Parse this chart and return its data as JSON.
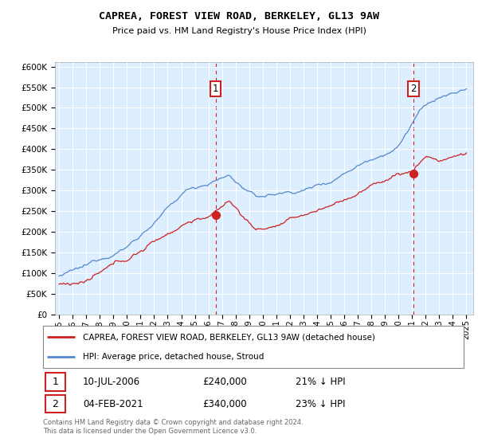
{
  "title1": "CAPREA, FOREST VIEW ROAD, BERKELEY, GL13 9AW",
  "title2": "Price paid vs. HM Land Registry's House Price Index (HPI)",
  "ylim": [
    0,
    610000
  ],
  "yticks": [
    0,
    50000,
    100000,
    150000,
    200000,
    250000,
    300000,
    350000,
    400000,
    450000,
    500000,
    550000,
    600000
  ],
  "xlim_start": 1994.7,
  "xlim_end": 2025.5,
  "plot_bg": "#ddeeff",
  "hpi_color": "#5588cc",
  "price_color": "#cc2222",
  "marker1_date": 2006.53,
  "marker1_price": 240000,
  "marker2_date": 2021.09,
  "marker2_price": 340000,
  "legend_label1": "CAPREA, FOREST VIEW ROAD, BERKELEY, GL13 9AW (detached house)",
  "legend_label2": "HPI: Average price, detached house, Stroud",
  "ann1_date": "10-JUL-2006",
  "ann1_price": "£240,000",
  "ann1_pct": "21% ↓ HPI",
  "ann2_date": "04-FEB-2021",
  "ann2_price": "£340,000",
  "ann2_pct": "23% ↓ HPI",
  "footer": "Contains HM Land Registry data © Crown copyright and database right 2024.\nThis data is licensed under the Open Government Licence v3.0."
}
